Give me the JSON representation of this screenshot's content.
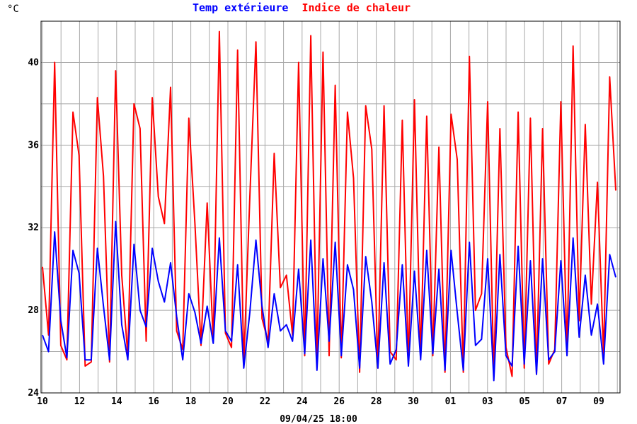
{
  "chart_data": {
    "type": "line",
    "unit": "°C",
    "series": [
      {
        "name": "Temp extérieure",
        "color": "#0000ff",
        "values": [
          26.8,
          26.0,
          31.8,
          27.5,
          25.7,
          30.9,
          29.8,
          25.6,
          25.6,
          31.0,
          28.2,
          25.6,
          32.3,
          27.3,
          25.6,
          31.2,
          28.0,
          27.2,
          31.0,
          29.4,
          28.4,
          30.3,
          27.7,
          25.6,
          28.8,
          27.9,
          26.4,
          28.2,
          26.4,
          31.5,
          27.0,
          26.5,
          30.2,
          25.2,
          27.9,
          31.4,
          28.2,
          26.2,
          28.8,
          27.0,
          27.3,
          26.5,
          30.0,
          25.9,
          31.4,
          25.1,
          30.5,
          26.5,
          31.3,
          25.8,
          30.2,
          29.0,
          25.2,
          30.6,
          28.4,
          25.2,
          30.3,
          25.4,
          26.1,
          30.2,
          25.3,
          29.9,
          25.6,
          30.9,
          25.9,
          30.0,
          25.1,
          30.9,
          27.9,
          25.1,
          31.3,
          26.3,
          26.6,
          30.5,
          24.6,
          30.7,
          25.8,
          25.3,
          31.1,
          25.4,
          30.4,
          24.9,
          30.5,
          25.6,
          26.0,
          30.4,
          25.8,
          31.5,
          26.7,
          29.7,
          26.8,
          28.3,
          25.4,
          30.7,
          29.6
        ]
      },
      {
        "name": "Indice de chaleur",
        "color": "#ff0000",
        "values": [
          30.1,
          26.8,
          40.0,
          26.3,
          25.6,
          37.6,
          35.5,
          25.3,
          25.5,
          38.3,
          34.5,
          25.5,
          39.6,
          29.7,
          25.8,
          38.0,
          36.8,
          26.5,
          38.3,
          33.5,
          32.2,
          38.8,
          27.0,
          26.1,
          37.3,
          32.2,
          26.3,
          33.2,
          26.5,
          41.5,
          26.9,
          26.2,
          40.6,
          25.4,
          33.5,
          41.0,
          27.6,
          26.5,
          35.6,
          29.1,
          29.7,
          26.8,
          40.0,
          25.8,
          41.3,
          25.5,
          40.5,
          25.8,
          38.9,
          25.7,
          37.6,
          34.4,
          25.0,
          37.9,
          35.8,
          25.2,
          37.9,
          26.0,
          25.6,
          37.2,
          25.4,
          38.2,
          25.7,
          37.4,
          25.8,
          35.9,
          25.0,
          37.5,
          35.3,
          25.0,
          40.3,
          28.0,
          28.8,
          38.1,
          24.8,
          36.8,
          26.2,
          24.8,
          37.6,
          25.2,
          37.3,
          24.9,
          36.8,
          25.4,
          26.1,
          38.1,
          25.9,
          40.8,
          27.5,
          37.0,
          28.3,
          34.2,
          25.8,
          39.3,
          33.8
        ]
      }
    ],
    "x_ticks": [
      "10",
      "12",
      "14",
      "16",
      "18",
      "20",
      "22",
      "24",
      "26",
      "28",
      "30",
      "01",
      "03",
      "05",
      "07",
      "09"
    ],
    "y_ticks": [
      "24",
      "28",
      "32",
      "36",
      "40"
    ],
    "ylim": [
      24,
      42
    ],
    "grid": true,
    "legend": "top-center",
    "footer": "09/04/25 18:00"
  }
}
